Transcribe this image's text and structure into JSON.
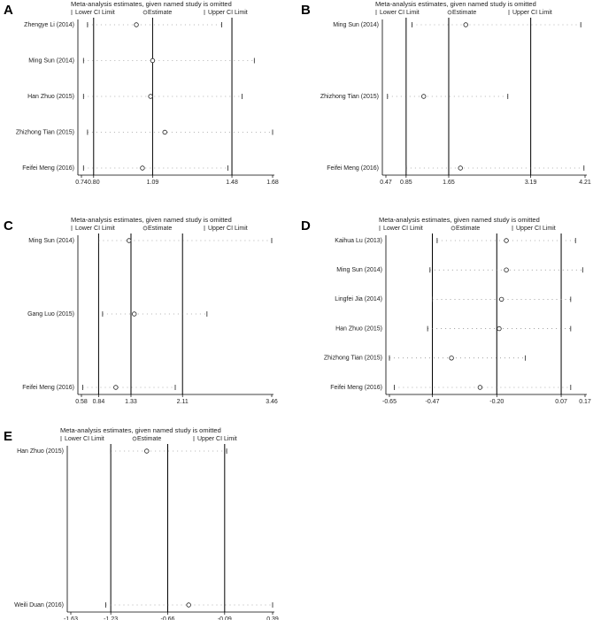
{
  "chart_data": [
    {
      "type": "interval",
      "panel": "A",
      "title": "Meta-analysis estimates, given named study is omitted",
      "legend": [
        "Lower CI Limit",
        "Estimate",
        "Upper CI Limit"
      ],
      "categories": [
        "Zhengye Li (2014)",
        "Ming Sun (2014)",
        "Han Zhuo (2015)",
        "Zhizhong Tian (2015)",
        "Feifei Meng (2016)"
      ],
      "lower": [
        0.77,
        0.75,
        0.75,
        0.77,
        0.75
      ],
      "estimate": [
        1.01,
        1.09,
        1.08,
        1.15,
        1.04
      ],
      "upper": [
        1.43,
        1.59,
        1.53,
        1.68,
        1.46
      ],
      "overall": {
        "lower": 0.8,
        "estimate": 1.09,
        "upper": 1.48
      },
      "xlim": [
        0.74,
        1.68
      ],
      "xticks": [
        0.74,
        {
          "value": 0.8,
          "label": "0.80"
        },
        1.09,
        1.48,
        1.68
      ]
    },
    {
      "type": "interval",
      "panel": "B",
      "title": "Meta-analysis estimates, given named study is omitted",
      "legend": [
        "Lower CI Limit",
        "Estimate",
        "Upper CI Limit"
      ],
      "categories": [
        "Ming Sun (2014)",
        "Zhizhong Tian (2015)",
        "Feifei Meng (2016)"
      ],
      "lower": [
        0.96,
        0.5,
        0.85
      ],
      "estimate": [
        1.97,
        1.18,
        1.87
      ],
      "upper": [
        4.13,
        2.76,
        4.19
      ],
      "overall": {
        "lower": 0.85,
        "estimate": 1.65,
        "upper": 3.19
      },
      "xlim": [
        0.47,
        4.21
      ],
      "xticks": [
        0.47,
        0.85,
        1.65,
        3.19,
        4.21
      ]
    },
    {
      "type": "interval",
      "panel": "C",
      "title": "Meta-analysis estimates, given named study is omitted",
      "legend": [
        "Lower CI Limit",
        "Estimate",
        "Upper CI Limit"
      ],
      "categories": [
        "Ming Sun (2014)",
        "Gang Luo (2015)",
        "Feifei Meng (2016)"
      ],
      "lower": [
        0.84,
        0.9,
        0.6
      ],
      "estimate": [
        1.3,
        1.38,
        1.1
      ],
      "upper": [
        3.46,
        2.48,
        2.0
      ],
      "overall": {
        "lower": 0.84,
        "estimate": 1.33,
        "upper": 2.11
      },
      "xlim": [
        0.58,
        3.46
      ],
      "xticks": [
        0.58,
        0.84,
        1.33,
        2.11,
        3.46
      ]
    },
    {
      "type": "interval",
      "panel": "D",
      "title": "Meta-analysis estimates, given named study is omitted",
      "legend": [
        "Lower CI Limit",
        "Estimate",
        "Upper CI Limit"
      ],
      "categories": [
        "Kaihua Lu (2013)",
        "Ming Sun (2014)",
        "Lingfei Jia (2014)",
        "Han Zhuo (2015)",
        "Zhizhong Tian (2015)",
        "Feifei Meng (2016)"
      ],
      "lower": [
        -0.45,
        -0.48,
        -0.47,
        -0.49,
        -0.65,
        -0.63
      ],
      "estimate": [
        -0.16,
        -0.16,
        -0.18,
        -0.19,
        -0.39,
        -0.27
      ],
      "upper": [
        0.13,
        0.16,
        0.11,
        0.11,
        -0.08,
        0.11
      ],
      "overall": {
        "lower": -0.47,
        "estimate": -0.2,
        "upper": 0.07
      },
      "xlim": [
        -0.65,
        0.17
      ],
      "xticks": [
        -0.65,
        -0.47,
        {
          "value": -0.2,
          "label": "-0.20"
        },
        0.07,
        0.17
      ]
    },
    {
      "type": "interval",
      "panel": "E",
      "title": "Meta-analysis estimates, given named study is omitted",
      "legend": [
        "Lower CI Limit",
        "Estimate",
        "Upper CI Limit"
      ],
      "categories": [
        "Han Zhuo (2015)",
        "Weili Duan (2016)"
      ],
      "lower": [
        -1.23,
        -1.28
      ],
      "estimate": [
        -0.87,
        -0.45
      ],
      "upper": [
        -0.07,
        0.39
      ],
      "overall": {
        "lower": -1.23,
        "estimate": -0.66,
        "upper": -0.09
      },
      "xlim": [
        -1.63,
        0.39
      ],
      "xticks": [
        -1.63,
        -1.23,
        -0.66,
        -0.09,
        0.39
      ]
    }
  ]
}
